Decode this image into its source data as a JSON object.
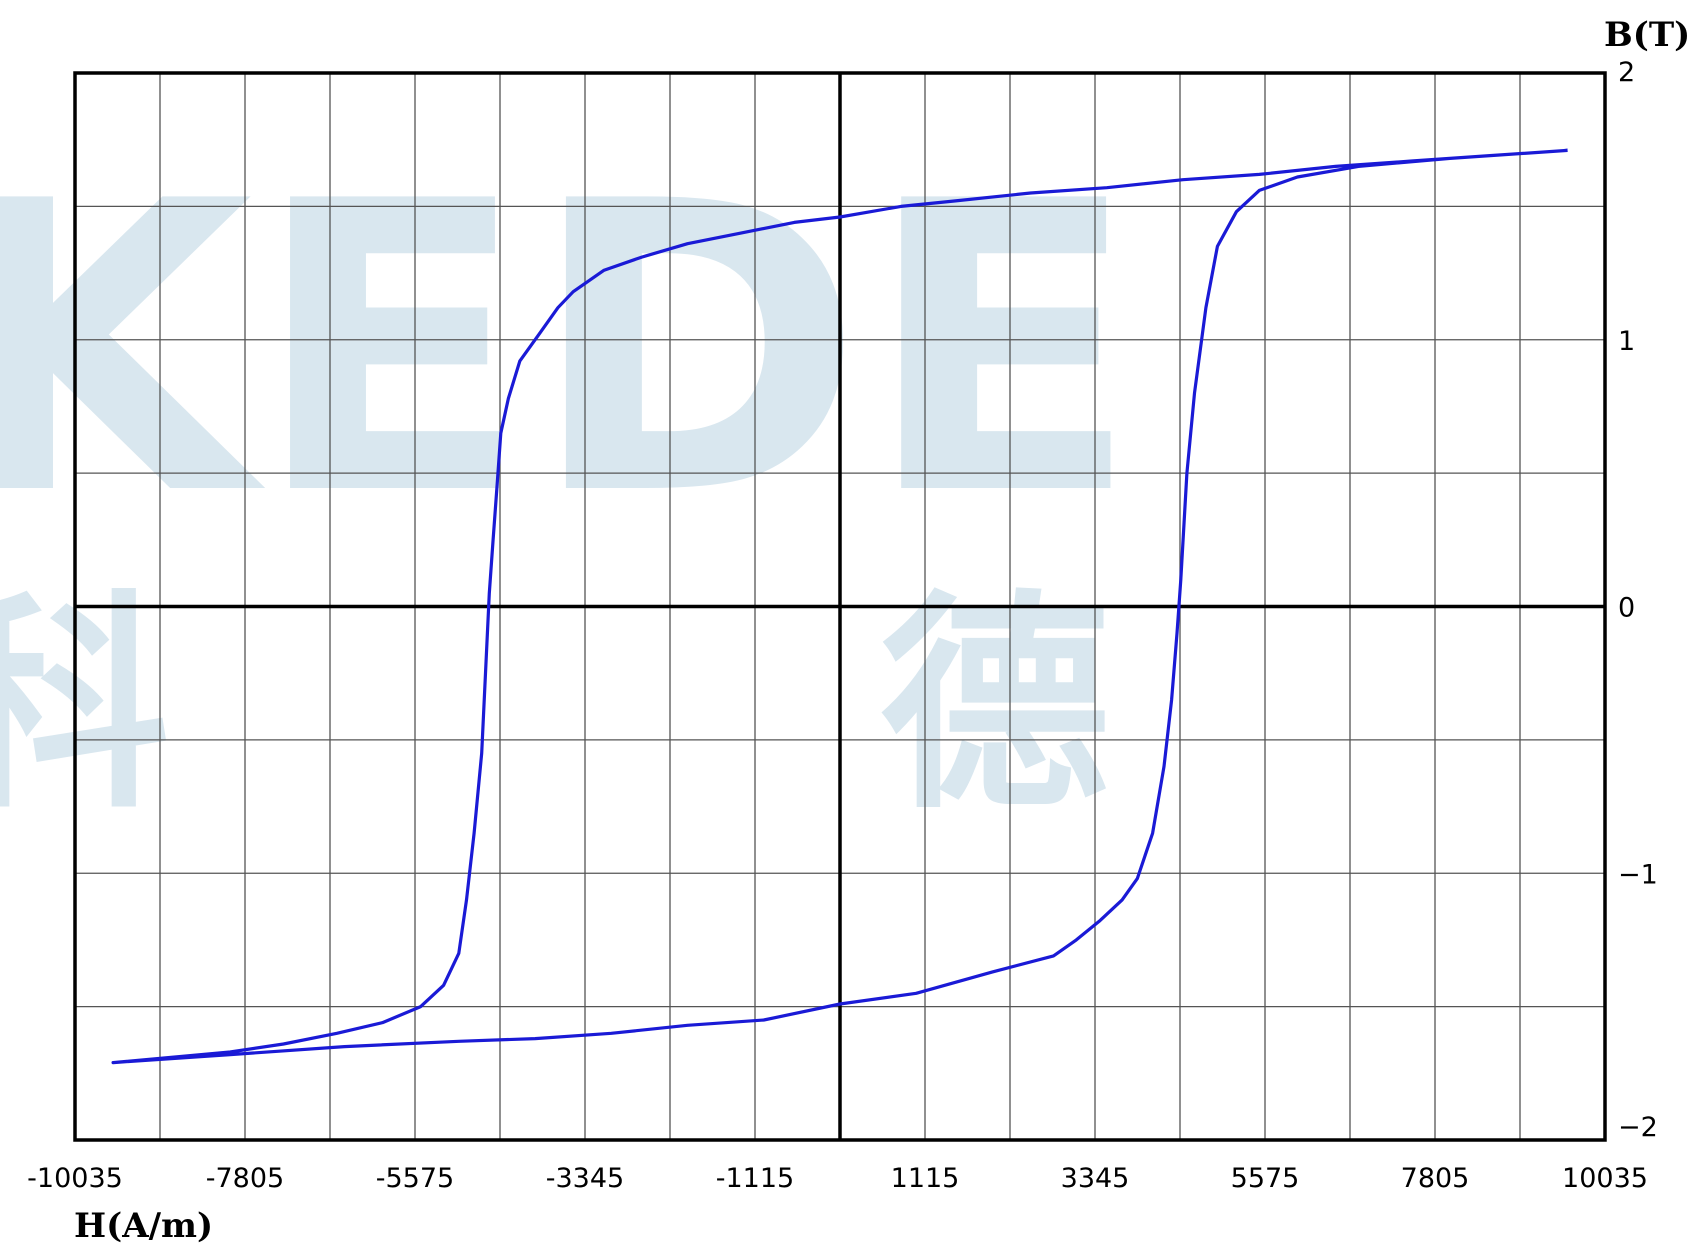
{
  "colors": {
    "background": "#ffffff",
    "grid": "#555555",
    "axis": "#000000",
    "curve": "#1a1ad6",
    "watermark": "#c9dde9"
  },
  "watermark": {
    "latin": "KEDE",
    "cjk_left": "科",
    "cjk_right": "德"
  },
  "chart_data": {
    "type": "line",
    "xlabel": "H(A/m)",
    "ylabel": "B(T)",
    "xlim": [
      -10035,
      10035
    ],
    "ylim": [
      -2,
      2
    ],
    "grid": true,
    "x_grid_step": 1115,
    "y_grid_step": 0.5,
    "x_ticks": [
      -10035,
      -7805,
      -5575,
      -3345,
      -1115,
      1115,
      3345,
      5575,
      7805,
      10035
    ],
    "x_tick_labels": [
      "-10035",
      "-7805",
      "-5575",
      "-3345",
      "-1115",
      "1115",
      "3345",
      "5575",
      "7805",
      "10035"
    ],
    "y_ticks": [
      2,
      1,
      0,
      -1,
      -2
    ],
    "y_tick_labels": [
      "2",
      "1",
      "0",
      "−1",
      "−2"
    ],
    "series": [
      {
        "points": [
          [
            9545,
            1.71
          ],
          [
            8500,
            1.69
          ],
          [
            7500,
            1.67
          ],
          [
            6500,
            1.65
          ],
          [
            5500,
            1.62
          ],
          [
            4500,
            1.6
          ],
          [
            3500,
            1.57
          ],
          [
            2500,
            1.55
          ],
          [
            1500,
            1.52
          ],
          [
            800,
            1.5
          ],
          [
            0,
            1.46
          ],
          [
            -600,
            1.44
          ],
          [
            -1300,
            1.4
          ],
          [
            -2000,
            1.36
          ],
          [
            -2600,
            1.31
          ],
          [
            -3100,
            1.26
          ],
          [
            -3500,
            1.18
          ],
          [
            -3700,
            1.12
          ],
          [
            -3950,
            1.02
          ],
          [
            -4200,
            0.92
          ],
          [
            -4350,
            0.78
          ],
          [
            -4450,
            0.65
          ],
          [
            -4500,
            0.45
          ],
          [
            -4550,
            0.25
          ],
          [
            -4600,
            0.05
          ],
          [
            -4650,
            -0.25
          ],
          [
            -4700,
            -0.55
          ],
          [
            -4800,
            -0.85
          ],
          [
            -4900,
            -1.1
          ],
          [
            -5000,
            -1.3
          ],
          [
            -5200,
            -1.42
          ],
          [
            -5500,
            -1.5
          ],
          [
            -6000,
            -1.56
          ],
          [
            -6600,
            -1.6
          ],
          [
            -7300,
            -1.64
          ],
          [
            -8000,
            -1.67
          ],
          [
            -9535,
            -1.71
          ],
          [
            -8000,
            -1.68
          ],
          [
            -6500,
            -1.65
          ],
          [
            -5000,
            -1.63
          ],
          [
            -4000,
            -1.62
          ],
          [
            -3000,
            -1.6
          ],
          [
            -2000,
            -1.57
          ],
          [
            -1000,
            -1.55
          ],
          [
            0,
            -1.49
          ],
          [
            1000,
            -1.45
          ],
          [
            2000,
            -1.37
          ],
          [
            2800,
            -1.31
          ],
          [
            3100,
            -1.25
          ],
          [
            3400,
            -1.18
          ],
          [
            3700,
            -1.1
          ],
          [
            3900,
            -1.02
          ],
          [
            4100,
            -0.85
          ],
          [
            4250,
            -0.6
          ],
          [
            4350,
            -0.35
          ],
          [
            4420,
            -0.1
          ],
          [
            4470,
            0.1
          ],
          [
            4550,
            0.5
          ],
          [
            4650,
            0.8
          ],
          [
            4800,
            1.12
          ],
          [
            4950,
            1.35
          ],
          [
            5200,
            1.48
          ],
          [
            5500,
            1.56
          ],
          [
            6000,
            1.61
          ],
          [
            6800,
            1.65
          ],
          [
            8000,
            1.68
          ],
          [
            9545,
            1.71
          ]
        ]
      }
    ]
  }
}
